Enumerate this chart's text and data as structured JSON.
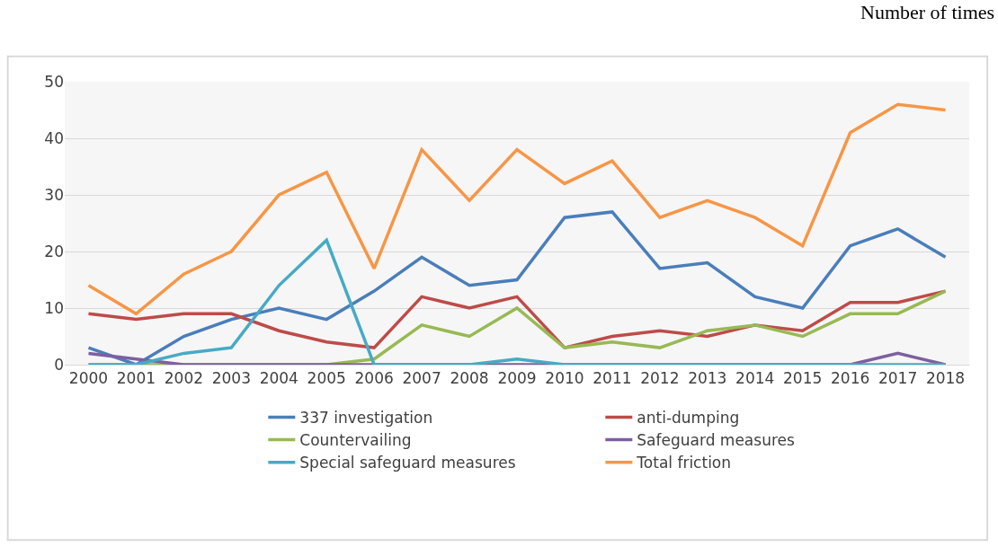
{
  "chart_data": {
    "type": "line",
    "ylabel": "Number of times",
    "categories": [
      "2000",
      "2001",
      "2002",
      "2003",
      "2004",
      "2005",
      "2006",
      "2007",
      "2008",
      "2009",
      "2010",
      "2011",
      "2012",
      "2013",
      "2014",
      "2015",
      "2016",
      "2017",
      "2018"
    ],
    "series": [
      {
        "name": "337 investigation",
        "color": "#4a7ebb",
        "values": [
          3,
          0,
          5,
          8,
          10,
          8,
          13,
          19,
          14,
          15,
          26,
          27,
          17,
          18,
          12,
          10,
          21,
          24,
          19
        ]
      },
      {
        "name": "anti-dumping",
        "color": "#be4b48",
        "values": [
          9,
          8,
          9,
          9,
          6,
          4,
          3,
          12,
          10,
          12,
          3,
          5,
          6,
          5,
          7,
          6,
          11,
          11,
          13
        ]
      },
      {
        "name": "Countervailing",
        "color": "#98b954",
        "values": [
          0,
          0,
          0,
          0,
          0,
          0,
          1,
          7,
          5,
          10,
          3,
          4,
          3,
          6,
          7,
          5,
          9,
          9,
          13
        ]
      },
      {
        "name": "Safeguard measures",
        "color": "#7d60a0",
        "values": [
          2,
          1,
          0,
          0,
          0,
          0,
          0,
          0,
          0,
          0,
          0,
          0,
          0,
          0,
          0,
          0,
          0,
          2,
          0
        ]
      },
      {
        "name": "Special safeguard measures",
        "color": "#46aac5",
        "values": [
          0,
          0,
          2,
          3,
          14,
          22,
          0,
          0,
          0,
          1,
          0,
          0,
          0,
          0,
          0,
          0,
          0,
          0,
          0
        ]
      },
      {
        "name": "Total friction",
        "color": "#f79646",
        "values": [
          14,
          9,
          16,
          20,
          30,
          34,
          17,
          38,
          29,
          38,
          32,
          36,
          26,
          29,
          26,
          21,
          41,
          46,
          45
        ]
      }
    ],
    "ylim": [
      0,
      50
    ],
    "yticks": [
      0,
      10,
      20,
      30,
      40,
      50
    ],
    "grid": "y",
    "legend": "bottom",
    "marker": "none",
    "line_style": "solid"
  }
}
